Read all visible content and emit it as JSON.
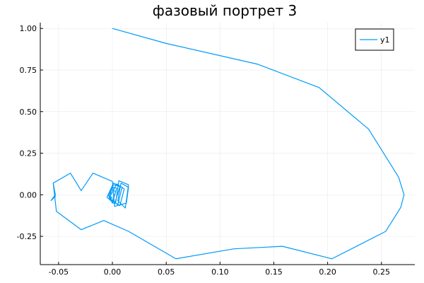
{
  "chart_data": {
    "type": "line",
    "title": "фазовый портрет 3",
    "xlabel": "",
    "ylabel": "",
    "xlim": [
      -0.067,
      0.281
    ],
    "ylim": [
      -0.42,
      1.035
    ],
    "x_ticks": [
      -0.05,
      0.0,
      0.05,
      0.1,
      0.15,
      0.2,
      0.25
    ],
    "x_tick_labels": [
      "-0.05",
      "0.00",
      "0.05",
      "0.10",
      "0.15",
      "0.20",
      "0.25"
    ],
    "y_ticks": [
      -0.25,
      0.0,
      0.25,
      0.5,
      0.75,
      1.0
    ],
    "y_tick_labels": [
      "-0.25",
      "0.00",
      "0.25",
      "0.50",
      "0.75",
      "1.00"
    ],
    "grid": true,
    "legend_position": "top-right",
    "series": [
      {
        "name": "y1",
        "color": "#009AFA",
        "points": [
          [
            0.0,
            1.0
          ],
          [
            0.05,
            0.91
          ],
          [
            0.135,
            0.785
          ],
          [
            0.192,
            0.645
          ],
          [
            0.238,
            0.395
          ],
          [
            0.266,
            0.105
          ],
          [
            0.271,
            0.0
          ],
          [
            0.268,
            -0.075
          ],
          [
            0.254,
            -0.22
          ],
          [
            0.204,
            -0.385
          ],
          [
            0.158,
            -0.31
          ],
          [
            0.113,
            -0.325
          ],
          [
            0.059,
            -0.385
          ],
          [
            0.015,
            -0.22
          ],
          [
            -0.008,
            -0.155
          ],
          [
            -0.029,
            -0.21
          ],
          [
            -0.052,
            -0.1
          ],
          [
            -0.055,
            0.07
          ],
          [
            -0.053,
            -0.01
          ],
          [
            -0.057,
            -0.035
          ],
          [
            -0.053,
            0.0
          ],
          [
            -0.055,
            0.07
          ],
          [
            -0.039,
            0.13
          ],
          [
            -0.029,
            0.025
          ],
          [
            -0.018,
            0.13
          ],
          [
            0.0,
            0.08
          ],
          [
            0.002,
            -0.07
          ],
          [
            0.013,
            -0.05
          ],
          [
            0.015,
            0.045
          ],
          [
            0.008,
            0.07
          ],
          [
            0.005,
            -0.035
          ],
          [
            0.012,
            -0.08
          ],
          [
            0.015,
            0.06
          ],
          [
            0.006,
            0.085
          ],
          [
            0.003,
            -0.05
          ],
          [
            0.007,
            -0.065
          ],
          [
            0.011,
            0.035
          ],
          [
            0.004,
            0.065
          ],
          [
            -0.003,
            -0.02
          ],
          [
            0.005,
            -0.06
          ],
          [
            0.009,
            0.045
          ],
          [
            0.001,
            0.07
          ],
          [
            -0.005,
            -0.015
          ],
          [
            0.002,
            -0.055
          ],
          [
            0.007,
            0.05
          ],
          [
            0.001,
            0.06
          ],
          [
            -0.004,
            0.0
          ],
          [
            0.0,
            -0.05
          ],
          [
            0.004,
            0.04
          ],
          [
            0.0,
            0.045
          ],
          [
            -0.003,
            0.0
          ],
          [
            0.0,
            -0.04
          ],
          [
            0.003,
            0.02
          ],
          [
            -0.001,
            0.03
          ],
          [
            -0.002,
            -0.01
          ],
          [
            0.0,
            -0.02
          ]
        ]
      }
    ]
  }
}
